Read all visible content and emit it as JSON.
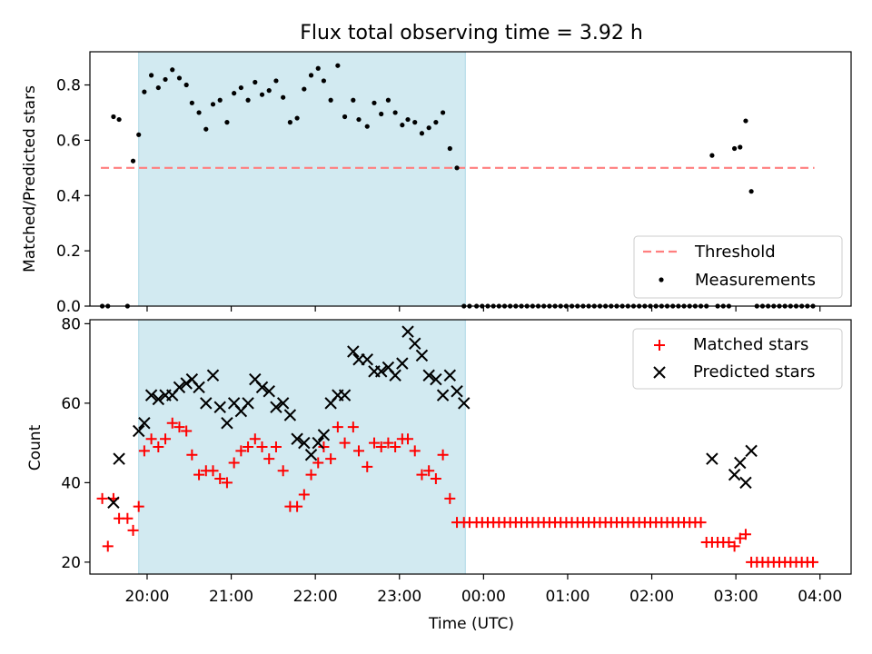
{
  "title": "Flux total observing time = 3.92 h",
  "colors": {
    "highlight": "#add8e6",
    "threshold": "#ff7f7f",
    "measurements": "#000000",
    "matched": "#ff0000",
    "predicted": "#000000"
  },
  "chart_data": [
    {
      "type": "scatter",
      "ylabel": "Matched/Predicted stars",
      "xlim": [
        19.32,
        4.37
      ],
      "ylim": [
        0,
        0.92
      ],
      "yticks": [
        0.0,
        0.2,
        0.4,
        0.6,
        0.8
      ],
      "ytick_labels": [
        "0.0",
        "0.2",
        "0.4",
        "0.6",
        "0.8"
      ],
      "highlight_span": [
        "19:54",
        "23:47"
      ],
      "threshold": {
        "name": "Threshold",
        "value": 0.5,
        "x_range": [
          "19:27",
          "03:56"
        ],
        "style": "dashed"
      },
      "series": [
        {
          "name": "Measurements",
          "marker": "dot",
          "x": [
            "19:28",
            "19:32",
            "19:36",
            "19:40",
            "19:46",
            "19:50",
            "19:54",
            "19:58",
            "20:03",
            "20:08",
            "20:13",
            "20:18",
            "20:23",
            "20:28",
            "20:32",
            "20:37",
            "20:42",
            "20:47",
            "20:52",
            "20:57",
            "21:02",
            "21:07",
            "21:12",
            "21:17",
            "21:22",
            "21:27",
            "21:32",
            "21:37",
            "21:42",
            "21:47",
            "21:52",
            "21:57",
            "22:02",
            "22:06",
            "22:11",
            "22:16",
            "22:21",
            "22:27",
            "22:31",
            "22:37",
            "22:42",
            "22:47",
            "22:52",
            "22:57",
            "23:02",
            "23:06",
            "23:11",
            "23:16",
            "23:21",
            "23:26",
            "23:31",
            "23:36",
            "23:41",
            "23:46",
            "23:50",
            "23:55",
            "23:59",
            "00:03",
            "00:07",
            "00:11",
            "00:15",
            "00:19",
            "00:23",
            "00:27",
            "00:31",
            "00:35",
            "00:39",
            "00:43",
            "00:47",
            "00:51",
            "00:55",
            "00:59",
            "01:03",
            "01:07",
            "01:11",
            "01:15",
            "01:19",
            "01:23",
            "01:27",
            "01:31",
            "01:35",
            "01:39",
            "01:43",
            "01:47",
            "01:51",
            "01:55",
            "01:59",
            "02:03",
            "02:07",
            "02:11",
            "02:15",
            "02:19",
            "02:23",
            "02:27",
            "02:31",
            "02:35",
            "02:39",
            "02:43",
            "02:47",
            "02:51",
            "02:55",
            "02:59",
            "03:03",
            "03:07",
            "03:11",
            "03:15",
            "03:19",
            "03:23",
            "03:27",
            "03:31",
            "03:35",
            "03:39",
            "03:43",
            "03:47",
            "03:51",
            "03:55"
          ],
          "y": [
            0,
            0,
            0.685,
            0.675,
            0,
            0.525,
            0.62,
            0.775,
            0.835,
            0.79,
            0.82,
            0.855,
            0.825,
            0.8,
            0.735,
            0.7,
            0.64,
            0.73,
            0.745,
            0.665,
            0.77,
            0.79,
            0.745,
            0.81,
            0.765,
            0.78,
            0.815,
            0.755,
            0.665,
            0.68,
            0.785,
            0.835,
            0.86,
            0.815,
            0.745,
            0.87,
            0.685,
            0.745,
            0.675,
            0.65,
            0.735,
            0.695,
            0.745,
            0.7,
            0.655,
            0.675,
            0.665,
            0.625,
            0.645,
            0.665,
            0.7,
            0.57,
            0.5,
            0,
            0,
            0,
            0,
            0,
            0,
            0,
            0,
            0,
            0,
            0,
            0,
            0,
            0,
            0,
            0,
            0,
            0,
            0,
            0,
            0,
            0,
            0,
            0,
            0,
            0,
            0,
            0,
            0,
            0,
            0,
            0,
            0,
            0,
            0,
            0,
            0,
            0,
            0,
            0,
            0,
            0,
            0,
            0,
            0.545,
            0,
            0,
            0,
            0.57,
            0.575,
            0.67,
            0.415,
            0,
            0,
            0,
            0,
            0,
            0,
            0,
            0,
            0,
            0,
            0
          ]
        }
      ]
    },
    {
      "type": "scatter",
      "ylabel": "Count",
      "xlabel": "Time (UTC)",
      "xlim": [
        19.32,
        4.37
      ],
      "ylim": [
        17,
        81
      ],
      "yticks": [
        20,
        40,
        60,
        80
      ],
      "ytick_labels": [
        "20",
        "40",
        "60",
        "80"
      ],
      "xtick_labels": [
        "20:00",
        "21:00",
        "22:00",
        "23:00",
        "00:00",
        "01:00",
        "02:00",
        "03:00",
        "04:00"
      ],
      "highlight_span": [
        "19:54",
        "23:47"
      ],
      "series": [
        {
          "name": "Matched stars",
          "marker": "plus",
          "x": [
            "19:28",
            "19:32",
            "19:36",
            "19:40",
            "19:46",
            "19:50",
            "19:54",
            "19:58",
            "20:03",
            "20:08",
            "20:13",
            "20:18",
            "20:23",
            "20:28",
            "20:32",
            "20:37",
            "20:42",
            "20:47",
            "20:52",
            "20:57",
            "21:02",
            "21:07",
            "21:12",
            "21:17",
            "21:22",
            "21:27",
            "21:32",
            "21:37",
            "21:42",
            "21:47",
            "21:52",
            "21:57",
            "22:02",
            "22:06",
            "22:11",
            "22:16",
            "22:21",
            "22:27",
            "22:31",
            "22:37",
            "22:42",
            "22:47",
            "22:52",
            "22:57",
            "23:02",
            "23:06",
            "23:11",
            "23:16",
            "23:21",
            "23:26",
            "23:31",
            "23:36",
            "23:41",
            "23:46",
            "23:50",
            "23:55",
            "23:59",
            "00:03",
            "00:07",
            "00:11",
            "00:15",
            "00:19",
            "00:23",
            "00:27",
            "00:31",
            "00:35",
            "00:39",
            "00:43",
            "00:47",
            "00:51",
            "00:55",
            "00:59",
            "01:03",
            "01:07",
            "01:11",
            "01:15",
            "01:19",
            "01:23",
            "01:27",
            "01:31",
            "01:35",
            "01:39",
            "01:43",
            "01:47",
            "01:51",
            "01:55",
            "01:59",
            "02:03",
            "02:07",
            "02:11",
            "02:15",
            "02:19",
            "02:23",
            "02:27",
            "02:31",
            "02:35",
            "02:39",
            "02:43",
            "02:47",
            "02:51",
            "02:55",
            "02:59",
            "03:03",
            "03:07",
            "03:11",
            "03:15",
            "03:19",
            "03:23",
            "03:27",
            "03:31",
            "03:35",
            "03:39",
            "03:43",
            "03:47",
            "03:51",
            "03:55"
          ],
          "y": [
            36,
            24,
            36,
            31,
            31,
            28,
            34,
            48,
            51,
            49,
            51,
            55,
            54,
            53,
            47,
            42,
            43,
            43,
            41,
            40,
            45,
            48,
            49,
            51,
            49,
            46,
            49,
            43,
            34,
            34,
            37,
            42,
            45,
            49,
            46,
            54,
            50,
            54,
            48,
            44,
            50,
            49,
            50,
            49,
            51,
            51,
            48,
            42,
            43,
            41,
            47,
            36,
            30,
            30,
            30,
            30,
            30,
            30,
            30,
            30,
            30,
            30,
            30,
            30,
            30,
            30,
            30,
            30,
            30,
            30,
            30,
            30,
            30,
            30,
            30,
            30,
            30,
            30,
            30,
            30,
            30,
            30,
            30,
            30,
            30,
            30,
            30,
            30,
            30,
            30,
            30,
            30,
            30,
            30,
            30,
            30,
            25,
            25,
            25,
            25,
            25,
            24,
            26,
            27,
            20,
            20,
            20,
            20,
            20,
            20,
            20,
            20,
            20,
            20,
            20,
            20
          ]
        },
        {
          "name": "Predicted stars",
          "marker": "x",
          "x": [
            "19:36",
            "19:40",
            "19:54",
            "19:58",
            "20:03",
            "20:08",
            "20:13",
            "20:18",
            "20:23",
            "20:28",
            "20:32",
            "20:37",
            "20:42",
            "20:47",
            "20:52",
            "20:57",
            "21:02",
            "21:07",
            "21:12",
            "21:17",
            "21:22",
            "21:27",
            "21:32",
            "21:37",
            "21:42",
            "21:47",
            "21:52",
            "21:57",
            "22:02",
            "22:06",
            "22:11",
            "22:16",
            "22:21",
            "22:27",
            "22:31",
            "22:37",
            "22:42",
            "22:47",
            "22:52",
            "22:57",
            "23:02",
            "23:06",
            "23:11",
            "23:16",
            "23:21",
            "23:26",
            "23:31",
            "23:36",
            "23:41",
            "23:46",
            "02:43",
            "02:59",
            "03:03",
            "03:07",
            "03:11"
          ],
          "y": [
            35,
            46,
            53,
            55,
            62,
            61,
            62,
            62,
            64,
            65,
            66,
            64,
            60,
            67,
            59,
            55,
            60,
            58,
            60,
            66,
            64,
            63,
            59,
            60,
            57,
            51,
            50,
            47,
            50,
            52,
            60,
            62,
            62,
            73,
            71,
            71,
            68,
            68,
            69,
            67,
            70,
            78,
            75,
            72,
            67,
            66,
            62,
            67,
            63,
            60,
            46,
            42,
            45,
            40,
            48
          ]
        }
      ]
    }
  ]
}
